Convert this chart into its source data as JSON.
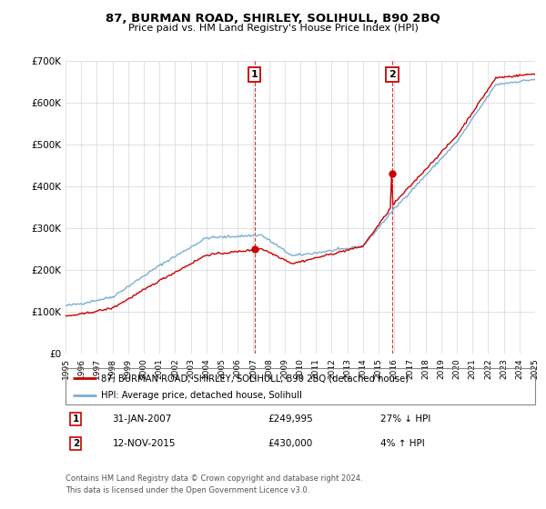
{
  "title": "87, BURMAN ROAD, SHIRLEY, SOLIHULL, B90 2BQ",
  "subtitle": "Price paid vs. HM Land Registry's House Price Index (HPI)",
  "legend_label_red": "87, BURMAN ROAD, SHIRLEY, SOLIHULL, B90 2BQ (detached house)",
  "legend_label_blue": "HPI: Average price, detached house, Solihull",
  "annotation1_date": "31-JAN-2007",
  "annotation1_price": "£249,995",
  "annotation1_hpi": "27% ↓ HPI",
  "annotation2_date": "12-NOV-2015",
  "annotation2_price": "£430,000",
  "annotation2_hpi": "4% ↑ HPI",
  "footnote1": "Contains HM Land Registry data © Crown copyright and database right 2024.",
  "footnote2": "This data is licensed under the Open Government Licence v3.0.",
  "sale1_year": 2007.08,
  "sale1_price": 249995,
  "sale2_year": 2015.87,
  "sale2_price": 430000,
  "ylim": [
    0,
    700000
  ],
  "yticks": [
    0,
    100000,
    200000,
    300000,
    400000,
    500000,
    600000,
    700000
  ],
  "ytick_labels": [
    "£0",
    "£100K",
    "£200K",
    "£300K",
    "£400K",
    "£500K",
    "£600K",
    "£700K"
  ],
  "xlim_start": 1995,
  "xlim_end": 2025,
  "red_color": "#cc0000",
  "blue_color": "#7aafd4",
  "background_color": "#ffffff",
  "grid_color": "#cccccc",
  "annotation_box_color": "#cc0000"
}
